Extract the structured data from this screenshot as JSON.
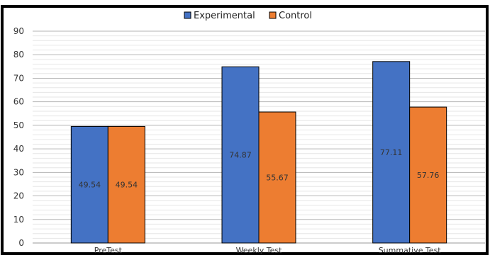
{
  "chart_data": {
    "type": "bar",
    "title": "",
    "xlabel": "",
    "ylabel": "",
    "categories": [
      "PreTest",
      "Weekly Test",
      "Summative Test"
    ],
    "series": [
      {
        "name": "Experimental",
        "values": [
          49.54,
          74.87,
          77.11
        ],
        "color": "#4472C4"
      },
      {
        "name": "Control",
        "values": [
          49.54,
          55.67,
          57.76
        ],
        "color": "#ED7D31"
      }
    ],
    "data_labels": [
      [
        "49.54",
        "74.87",
        "77.11"
      ],
      [
        "49.54",
        "55.67",
        "57.76"
      ]
    ],
    "ylim": [
      0,
      90
    ],
    "yticks": [
      "0",
      "10",
      "20",
      "30",
      "40",
      "50",
      "60",
      "70",
      "80",
      "90"
    ],
    "grid": true,
    "minor_grid": true,
    "legend_position": "top-center",
    "frame_color": "#000000"
  }
}
